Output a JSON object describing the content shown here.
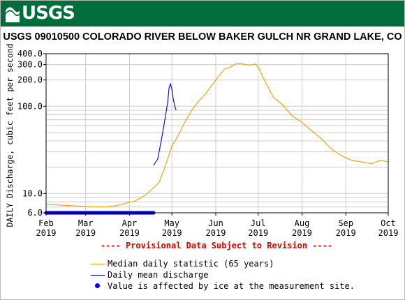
{
  "header": {
    "logo_text": "USGS"
  },
  "chart_data": {
    "type": "line",
    "title": "USGS 09010500 COLORADO RIVER BELOW BAKER GULCH NR GRAND LAKE, CO",
    "ylabel": "DAILY Discharge, cubic feet per second",
    "xlabel": "",
    "yscale": "log",
    "ylim": [
      6,
      400
    ],
    "y_ticks": [
      6,
      10,
      100,
      200,
      300,
      400
    ],
    "y_tick_labels": [
      "6.0",
      "10.0",
      "100.0",
      "200.0",
      "300.0",
      "400.0"
    ],
    "xlim": [
      "2019-02-01",
      "2019-10-01"
    ],
    "x_ticks": [
      "2019-02-01",
      "2019-03-01",
      "2019-04-01",
      "2019-05-01",
      "2019-06-01",
      "2019-07-01",
      "2019-08-01",
      "2019-09-01",
      "2019-10-01"
    ],
    "x_tick_labels": [
      {
        "month": "Feb",
        "year": "2019"
      },
      {
        "month": "Mar",
        "year": "2019"
      },
      {
        "month": "Apr",
        "year": "2019"
      },
      {
        "month": "May",
        "year": "2019"
      },
      {
        "month": "Jun",
        "year": "2019"
      },
      {
        "month": "Jul",
        "year": "2019"
      },
      {
        "month": "Aug",
        "year": "2019"
      },
      {
        "month": "Sep",
        "year": "2019"
      },
      {
        "month": "Oct",
        "year": "2019"
      }
    ],
    "grid": true,
    "provisional_note": "---- Provisional Data Subject to Revision ----",
    "series": [
      {
        "name": "Median daily statistic (65 years)",
        "color": "#e6a100",
        "points": [
          [
            "2019-02-01",
            7.5
          ],
          [
            "2019-02-08",
            7.4
          ],
          [
            "2019-02-15",
            7.3
          ],
          [
            "2019-02-22",
            7.2
          ],
          [
            "2019-03-01",
            7.1
          ],
          [
            "2019-03-08",
            7.0
          ],
          [
            "2019-03-15",
            7.0
          ],
          [
            "2019-03-22",
            7.2
          ],
          [
            "2019-03-29",
            7.7
          ],
          [
            "2019-04-05",
            8.2
          ],
          [
            "2019-04-12",
            9.5
          ],
          [
            "2019-04-19",
            12
          ],
          [
            "2019-04-22",
            13.5
          ],
          [
            "2019-04-26",
            20
          ],
          [
            "2019-05-01",
            35
          ],
          [
            "2019-05-05",
            45
          ],
          [
            "2019-05-10",
            65
          ],
          [
            "2019-05-15",
            90
          ],
          [
            "2019-05-20",
            115
          ],
          [
            "2019-05-25",
            140
          ],
          [
            "2019-06-01",
            200
          ],
          [
            "2019-06-07",
            265
          ],
          [
            "2019-06-12",
            285
          ],
          [
            "2019-06-16",
            310
          ],
          [
            "2019-06-20",
            305
          ],
          [
            "2019-06-25",
            295
          ],
          [
            "2019-06-29",
            305
          ],
          [
            "2019-07-02",
            265
          ],
          [
            "2019-07-06",
            190
          ],
          [
            "2019-07-12",
            125
          ],
          [
            "2019-07-18",
            105
          ],
          [
            "2019-07-25",
            78
          ],
          [
            "2019-08-01",
            65
          ],
          [
            "2019-08-08",
            52
          ],
          [
            "2019-08-15",
            42
          ],
          [
            "2019-08-22",
            32
          ],
          [
            "2019-08-29",
            27
          ],
          [
            "2019-09-05",
            24
          ],
          [
            "2019-09-12",
            23
          ],
          [
            "2019-09-19",
            22
          ],
          [
            "2019-09-26",
            24
          ],
          [
            "2019-10-01",
            23
          ]
        ]
      },
      {
        "name": "Daily mean discharge",
        "color": "#0000cc",
        "points": [
          [
            "2019-04-18",
            21
          ],
          [
            "2019-04-21",
            25
          ],
          [
            "2019-04-24",
            45
          ],
          [
            "2019-04-26",
            70
          ],
          [
            "2019-04-28",
            110
          ],
          [
            "2019-04-29",
            165
          ],
          [
            "2019-04-30",
            180
          ],
          [
            "2019-05-01",
            155
          ],
          [
            "2019-05-02",
            120
          ],
          [
            "2019-05-03",
            100
          ],
          [
            "2019-05-04",
            90
          ]
        ]
      },
      {
        "name": "Value is affected by ice at the measurement site.",
        "color": "#0000ff",
        "marker": "dot",
        "start": "2019-02-01",
        "end": "2019-04-18",
        "y": 6
      }
    ]
  }
}
